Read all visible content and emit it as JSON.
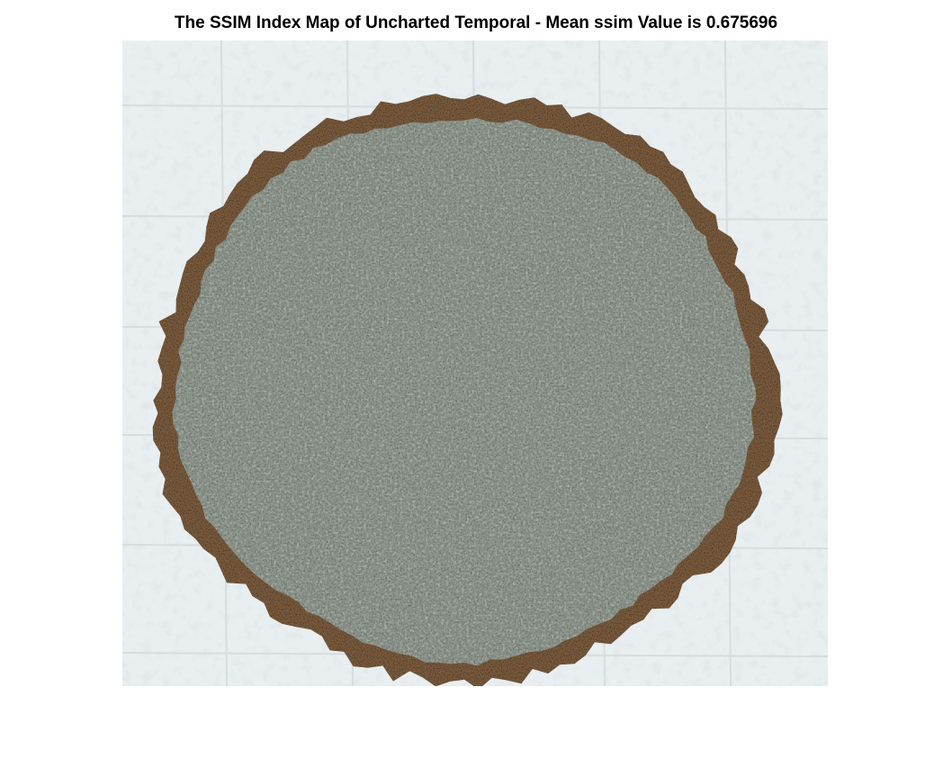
{
  "figure": {
    "title": "The SSIM Index Map of Uncharted Temporal - Mean ssim Value is 0.675696"
  },
  "ssim_map": {
    "mean_ssim": 0.675696,
    "colors": {
      "background": "#e9eff1",
      "disc_fill": "#8b938a",
      "disc_dark": "#3f4640",
      "disc_light": "#c8cfc6",
      "rim_dark": "#3a2e24",
      "rim_brown": "#7a5a3c",
      "grid_line": "#d6dcdf"
    }
  }
}
